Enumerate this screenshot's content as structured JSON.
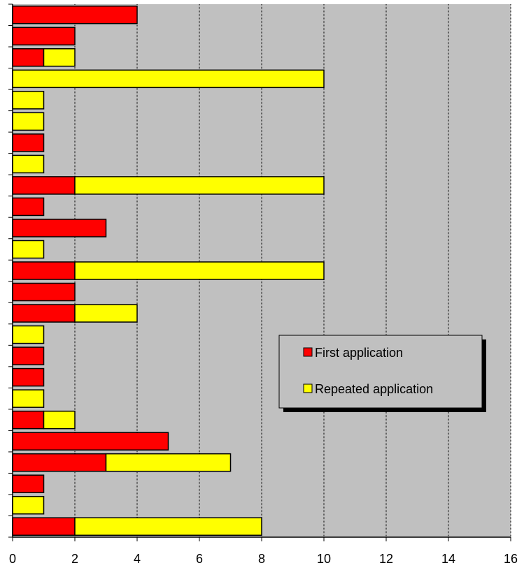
{
  "chart_data": {
    "type": "bar",
    "orientation": "horizontal",
    "stacked": true,
    "series": [
      {
        "name": "First application",
        "values": [
          4,
          2,
          1,
          0,
          0,
          0,
          1,
          0,
          2,
          1,
          3,
          0,
          2,
          2,
          2,
          0,
          1,
          1,
          0,
          1,
          5,
          3,
          1,
          0,
          2
        ]
      },
      {
        "name": "Repeated application",
        "values": [
          0,
          0,
          1,
          10,
          1,
          1,
          0,
          1,
          8,
          0,
          0,
          1,
          8,
          0,
          2,
          1,
          0,
          0,
          1,
          1,
          0,
          4,
          0,
          1,
          6
        ]
      }
    ],
    "xlim": [
      0,
      16
    ],
    "xticks": [
      "0",
      "2",
      "4",
      "6",
      "8",
      "10",
      "12",
      "14",
      "16"
    ],
    "grid": true,
    "legend_position": "right-middle",
    "colors": {
      "first": "#ff0000",
      "repeated": "#ffff00",
      "plot_background": "#c0c0c0",
      "legend_background": "#c0c0c0"
    }
  }
}
